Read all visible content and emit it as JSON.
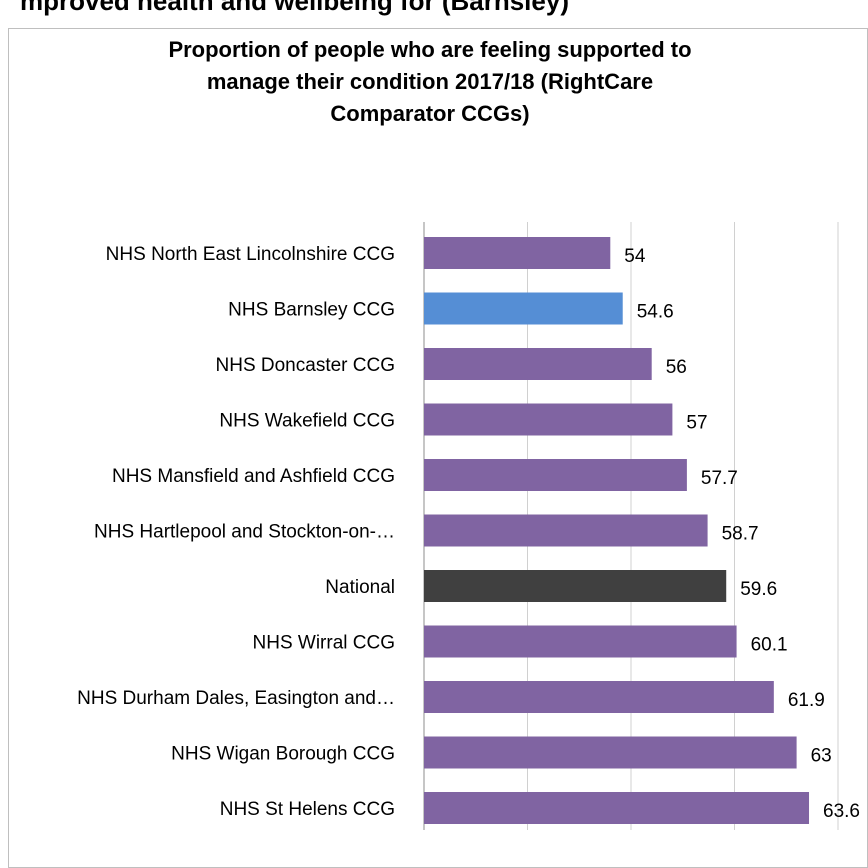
{
  "page": {
    "heading_fragment": "mproved health and wellbeing for (Barnsley)"
  },
  "chart_data": {
    "type": "bar",
    "orientation": "horizontal",
    "title": "Proportion of people who are feeling supported to manage their condition 2017/18 (RightCare Comparator CCGs)",
    "title_lines": [
      "Proportion of people who are feeling supported to",
      "manage their condition 2017/18 (RightCare",
      "Comparator CCGs)"
    ],
    "categories": [
      "NHS North East Lincolnshire CCG",
      "NHS Barnsley CCG",
      "NHS Doncaster CCG",
      "NHS Wakefield CCG",
      "NHS Mansfield and Ashfield CCG",
      "NHS Hartlepool and Stockton-on-…",
      "National",
      "NHS Wirral CCG",
      "NHS Durham Dales, Easington and…",
      "NHS Wigan Borough CCG",
      "NHS St Helens CCG"
    ],
    "values": [
      54,
      54.6,
      56,
      57,
      57.7,
      58.7,
      59.6,
      60.1,
      61.9,
      63,
      63.6
    ],
    "value_labels": [
      "54",
      "54.6",
      "56",
      "57",
      "57.7",
      "58.7",
      "59.6",
      "60.1",
      "61.9",
      "63",
      "63.6"
    ],
    "xlim": [
      45,
      65
    ],
    "grid": true,
    "colors": {
      "default": "#8064a2",
      "highlight": "#558ed5",
      "national": "#404040",
      "grid": "#d0d0d0"
    },
    "highlight_index": 1,
    "national_index": 6,
    "legend": "none"
  }
}
